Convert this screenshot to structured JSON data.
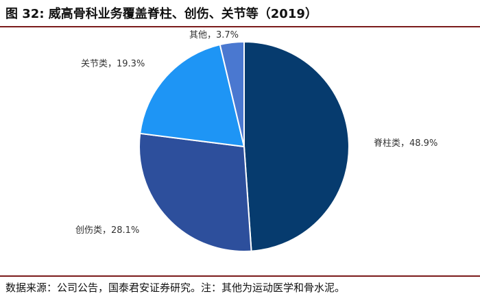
{
  "figure": {
    "title": "图 32: 威高骨科业务覆盖脊柱、创伤、关节等（2019）",
    "source": "数据来源：公司公告，国泰君安证券研究。注：其他为运动医学和骨水泥。"
  },
  "chart_data": {
    "type": "pie",
    "slices": [
      {
        "name": "脊柱类",
        "value": 48.9,
        "label": "脊柱类，48.9%",
        "color": "#063b6e"
      },
      {
        "name": "创伤类",
        "value": 28.1,
        "label": "创伤类，28.1%",
        "color": "#2d4f9c"
      },
      {
        "name": "关节类",
        "value": 19.3,
        "label": "关节类，19.3%",
        "color": "#1e95f5"
      },
      {
        "name": "其他",
        "value": 3.7,
        "label": "其他，3.7%",
        "color": "#4a78d0"
      }
    ],
    "start": "top",
    "direction": "clockwise",
    "legend": "none"
  }
}
